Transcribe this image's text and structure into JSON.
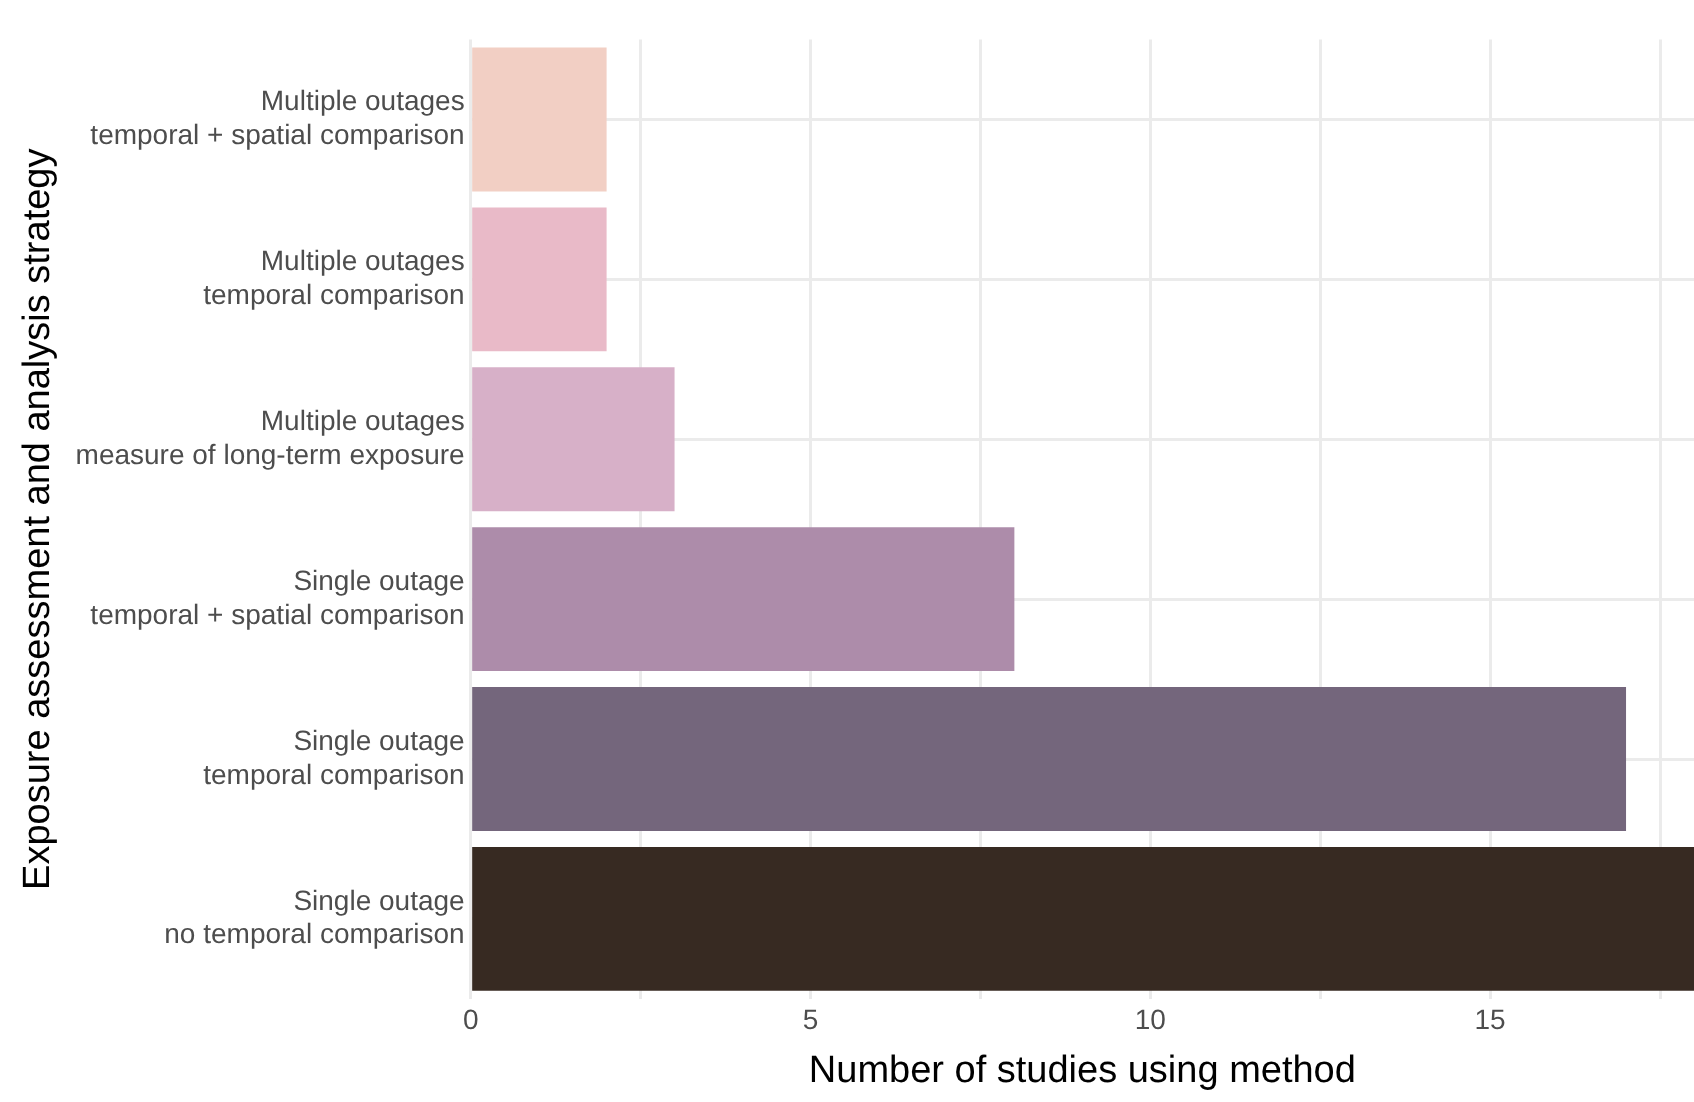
{
  "chart_data": {
    "type": "bar",
    "orientation": "horizontal",
    "xlabel": "Number of studies using method",
    "ylabel": "Exposure assessment and analysis strategy",
    "categories": [
      "Multiple outages\ntemporal + spatial comparison",
      "Multiple outages\ntemporal comparison",
      "Multiple outages\nmeasure of long-term exposure",
      "Single outage\ntemporal + spatial comparison",
      "Single outage\ntemporal comparison",
      "Single outage\nno temporal comparison"
    ],
    "values": [
      2,
      2,
      3,
      8,
      17,
      18
    ],
    "colors": [
      "#f2cfc4",
      "#e9bac8",
      "#d7b0c8",
      "#ad8caa",
      "#74667c",
      "#372a22"
    ],
    "xlim": [
      0,
      18
    ],
    "xticks": [
      0,
      {
        "value": 2.5,
        "label": null
      },
      5,
      {
        "value": 7.5,
        "label": null
      },
      10,
      {
        "value": 12.5,
        "label": null
      },
      15,
      {
        "value": 17.5,
        "label": null
      }
    ],
    "grid": true
  }
}
